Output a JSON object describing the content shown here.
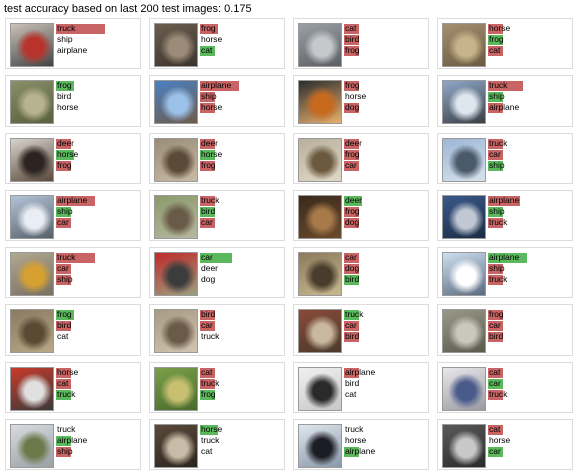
{
  "header": {
    "title": "test accuracy based on last 200 test images: 0.175"
  },
  "colors": {
    "incorrect_bar": "#c86464",
    "correct_bar": "#5cb85c"
  },
  "cards": [
    {
      "image_hint": "car",
      "thumb_colors": [
        "#c9c2b8",
        "#b7332b",
        "#444444"
      ],
      "preds": [
        {
          "label": "truck",
          "score": 0.7,
          "correct": false
        },
        {
          "label": "ship",
          "score": 0,
          "correct": false
        },
        {
          "label": "airplane",
          "score": 0,
          "correct": false
        }
      ]
    },
    {
      "image_hint": "cat",
      "thumb_colors": [
        "#6b5e50",
        "#9b8b78",
        "#3c342c"
      ],
      "preds": [
        {
          "label": "frog",
          "score": 0.25,
          "correct": false
        },
        {
          "label": "horse",
          "score": 0,
          "correct": false
        },
        {
          "label": "cat",
          "score": 0.22,
          "correct": true
        }
      ]
    },
    {
      "image_hint": "car",
      "thumb_colors": [
        "#9aa0a6",
        "#c6c9cc",
        "#5b5f63"
      ],
      "preds": [
        {
          "label": "cat",
          "score": 0.22,
          "correct": false
        },
        {
          "label": "bird",
          "score": 0.22,
          "correct": false
        },
        {
          "label": "frog",
          "score": 0.22,
          "correct": false
        }
      ]
    },
    {
      "image_hint": "frog",
      "thumb_colors": [
        "#a59070",
        "#c8b48c",
        "#6a5a40"
      ],
      "preds": [
        {
          "label": "horse",
          "score": 0.22,
          "correct": false
        },
        {
          "label": "frog",
          "score": 0.22,
          "correct": true
        },
        {
          "label": "cat",
          "score": 0.22,
          "correct": false
        }
      ]
    },
    {
      "image_hint": "frog",
      "thumb_colors": [
        "#8a8f6a",
        "#b7b390",
        "#5a5f3c"
      ],
      "preds": [
        {
          "label": "frog",
          "score": 0.25,
          "correct": true
        },
        {
          "label": "bird",
          "score": 0,
          "correct": false
        },
        {
          "label": "horse",
          "score": 0,
          "correct": false
        }
      ]
    },
    {
      "image_hint": "frog",
      "thumb_colors": [
        "#4a80c4",
        "#9cc1e8",
        "#6f5c4a"
      ],
      "preds": [
        {
          "label": "airplane",
          "score": 0.55,
          "correct": false
        },
        {
          "label": "ship",
          "score": 0.22,
          "correct": false
        },
        {
          "label": "horse",
          "score": 0.22,
          "correct": false
        }
      ]
    },
    {
      "image_hint": "bird",
      "thumb_colors": [
        "#2d2d2d",
        "#c86a1e",
        "#e6b070"
      ],
      "preds": [
        {
          "label": "frog",
          "score": 0.22,
          "correct": false
        },
        {
          "label": "horse",
          "score": 0,
          "correct": false
        },
        {
          "label": "dog",
          "score": 0.22,
          "correct": false
        }
      ]
    },
    {
      "image_hint": "ship",
      "thumb_colors": [
        "#8fa8c8",
        "#dfe6ee",
        "#3a3f44"
      ],
      "preds": [
        {
          "label": "truck",
          "score": 0.5,
          "correct": false
        },
        {
          "label": "ship",
          "score": 0.22,
          "correct": true
        },
        {
          "label": "airplane",
          "score": 0.22,
          "correct": false
        }
      ]
    },
    {
      "image_hint": "horse",
      "thumb_colors": [
        "#d7d3cc",
        "#2b2420",
        "#5b4a3c"
      ],
      "preds": [
        {
          "label": "deer",
          "score": 0.22,
          "correct": false
        },
        {
          "label": "horse",
          "score": 0.25,
          "correct": true
        },
        {
          "label": "frog",
          "score": 0.22,
          "correct": false
        }
      ]
    },
    {
      "image_hint": "horse",
      "thumb_colors": [
        "#9a8d78",
        "#5c4a38",
        "#c7bba4"
      ],
      "preds": [
        {
          "label": "deer",
          "score": 0.22,
          "correct": false
        },
        {
          "label": "horse",
          "score": 0.22,
          "correct": true
        },
        {
          "label": "frog",
          "score": 0.22,
          "correct": false
        }
      ]
    },
    {
      "image_hint": "bird",
      "thumb_colors": [
        "#b8b09c",
        "#6c5a40",
        "#e0d8c6"
      ],
      "preds": [
        {
          "label": "deer",
          "score": 0.22,
          "correct": false
        },
        {
          "label": "frog",
          "score": 0.22,
          "correct": false
        },
        {
          "label": "car",
          "score": 0.22,
          "correct": false
        }
      ]
    },
    {
      "image_hint": "ship",
      "thumb_colors": [
        "#9db7d6",
        "#4b5a6a",
        "#d8e2ec"
      ],
      "preds": [
        {
          "label": "truck",
          "score": 0.22,
          "correct": false
        },
        {
          "label": "car",
          "score": 0.22,
          "correct": false
        },
        {
          "label": "ship",
          "score": 0.22,
          "correct": true
        }
      ]
    },
    {
      "image_hint": "ship",
      "thumb_colors": [
        "#b4c4d8",
        "#e9eef4",
        "#56606a"
      ],
      "preds": [
        {
          "label": "airplane",
          "score": 0.55,
          "correct": false
        },
        {
          "label": "ship",
          "score": 0.22,
          "correct": true
        },
        {
          "label": "car",
          "score": 0.22,
          "correct": false
        }
      ]
    },
    {
      "image_hint": "bird",
      "thumb_colors": [
        "#8a9a6a",
        "#6a5a48",
        "#b8b8a0"
      ],
      "preds": [
        {
          "label": "truck",
          "score": 0.22,
          "correct": false
        },
        {
          "label": "bird",
          "score": 0.22,
          "correct": true
        },
        {
          "label": "car",
          "score": 0.22,
          "correct": false
        }
      ]
    },
    {
      "image_hint": "deer",
      "thumb_colors": [
        "#3a2a1c",
        "#a87a4a",
        "#6a4a2c"
      ],
      "preds": [
        {
          "label": "deer",
          "score": 0.25,
          "correct": true
        },
        {
          "label": "frog",
          "score": 0.22,
          "correct": false
        },
        {
          "label": "dog",
          "score": 0.22,
          "correct": false
        }
      ]
    },
    {
      "image_hint": "ship",
      "thumb_colors": [
        "#3a5a8a",
        "#c0c8d4",
        "#1c2c44"
      ],
      "preds": [
        {
          "label": "airplane",
          "score": 0.45,
          "correct": false
        },
        {
          "label": "ship",
          "score": 0.22,
          "correct": true
        },
        {
          "label": "truck",
          "score": 0.22,
          "correct": false
        }
      ]
    },
    {
      "image_hint": "bird",
      "thumb_colors": [
        "#b0a890",
        "#d8a030",
        "#7a7060"
      ],
      "preds": [
        {
          "label": "truck",
          "score": 0.55,
          "correct": false
        },
        {
          "label": "car",
          "score": 0.22,
          "correct": false
        },
        {
          "label": "ship",
          "score": 0.22,
          "correct": false
        }
      ]
    },
    {
      "image_hint": "car",
      "thumb_colors": [
        "#c02a2a",
        "#3c3c3c",
        "#9aa080"
      ],
      "preds": [
        {
          "label": "car",
          "score": 0.45,
          "correct": true
        },
        {
          "label": "deer",
          "score": 0,
          "correct": false
        },
        {
          "label": "dog",
          "score": 0,
          "correct": false
        }
      ]
    },
    {
      "image_hint": "bird",
      "thumb_colors": [
        "#8a7a5a",
        "#4a3c2c",
        "#c8b890"
      ],
      "preds": [
        {
          "label": "car",
          "score": 0.22,
          "correct": false
        },
        {
          "label": "dog",
          "score": 0.22,
          "correct": false
        },
        {
          "label": "bird",
          "score": 0.22,
          "correct": true
        }
      ]
    },
    {
      "image_hint": "airplane",
      "thumb_colors": [
        "#cfe0f0",
        "#ffffff",
        "#5a6a80"
      ],
      "preds": [
        {
          "label": "airplane",
          "score": 0.55,
          "correct": true
        },
        {
          "label": "ship",
          "score": 0.22,
          "correct": false
        },
        {
          "label": "truck",
          "score": 0.22,
          "correct": false
        }
      ]
    },
    {
      "image_hint": "frog",
      "thumb_colors": [
        "#8a7a60",
        "#5a4a34",
        "#b8a888"
      ],
      "preds": [
        {
          "label": "frog",
          "score": 0.25,
          "correct": true
        },
        {
          "label": "bird",
          "score": 0.22,
          "correct": false
        },
        {
          "label": "cat",
          "score": 0,
          "correct": false
        }
      ]
    },
    {
      "image_hint": "cat",
      "thumb_colors": [
        "#a89a84",
        "#6a5a48",
        "#d0c4b0"
      ],
      "preds": [
        {
          "label": "bird",
          "score": 0.22,
          "correct": false
        },
        {
          "label": "car",
          "score": 0.22,
          "correct": false
        },
        {
          "label": "truck",
          "score": 0,
          "correct": false
        }
      ]
    },
    {
      "image_hint": "truck",
      "thumb_colors": [
        "#8a4a3a",
        "#c8b8a0",
        "#4a3a2c"
      ],
      "preds": [
        {
          "label": "truck",
          "score": 0.22,
          "correct": true
        },
        {
          "label": "car",
          "score": 0.22,
          "correct": false
        },
        {
          "label": "bird",
          "score": 0.22,
          "correct": false
        }
      ]
    },
    {
      "image_hint": "horse",
      "thumb_colors": [
        "#9a9a8a",
        "#c8c8bc",
        "#5a5a4c"
      ],
      "preds": [
        {
          "label": "frog",
          "score": 0.22,
          "correct": false
        },
        {
          "label": "car",
          "score": 0.22,
          "correct": false
        },
        {
          "label": "bird",
          "score": 0.22,
          "correct": false
        }
      ]
    },
    {
      "image_hint": "truck",
      "thumb_colors": [
        "#c83a2a",
        "#e0e0e0",
        "#3a3a3a"
      ],
      "preds": [
        {
          "label": "horse",
          "score": 0.22,
          "correct": false
        },
        {
          "label": "cat",
          "score": 0.22,
          "correct": false
        },
        {
          "label": "truck",
          "score": 0.22,
          "correct": true
        }
      ]
    },
    {
      "image_hint": "frog",
      "thumb_colors": [
        "#7aa04a",
        "#c8c070",
        "#4a6a2c"
      ],
      "preds": [
        {
          "label": "cat",
          "score": 0.22,
          "correct": false
        },
        {
          "label": "truck",
          "score": 0.22,
          "correct": false
        },
        {
          "label": "frog",
          "score": 0.22,
          "correct": true
        }
      ]
    },
    {
      "image_hint": "dog",
      "thumb_colors": [
        "#f0f0f0",
        "#2a2a2a",
        "#c8c8c8"
      ],
      "preds": [
        {
          "label": "airplane",
          "score": 0.22,
          "correct": false
        },
        {
          "label": "bird",
          "score": 0,
          "correct": false
        },
        {
          "label": "cat",
          "score": 0,
          "correct": false
        }
      ]
    },
    {
      "image_hint": "car",
      "thumb_colors": [
        "#e8e8ec",
        "#4a5a8a",
        "#9a9aa0"
      ],
      "preds": [
        {
          "label": "cat",
          "score": 0.22,
          "correct": false
        },
        {
          "label": "car",
          "score": 0.22,
          "correct": true
        },
        {
          "label": "truck",
          "score": 0.22,
          "correct": false
        }
      ]
    },
    {
      "image_hint": "airplane",
      "thumb_colors": [
        "#d8dce0",
        "#6a7a4a",
        "#9aa0a4"
      ],
      "preds": [
        {
          "label": "truck",
          "score": 0,
          "correct": false
        },
        {
          "label": "airplane",
          "score": 0.22,
          "correct": true
        },
        {
          "label": "ship",
          "score": 0.22,
          "correct": false
        }
      ]
    },
    {
      "image_hint": "horse",
      "thumb_colors": [
        "#5a4a3c",
        "#c8bca8",
        "#2c241c"
      ],
      "preds": [
        {
          "label": "horse",
          "score": 0.25,
          "correct": true
        },
        {
          "label": "truck",
          "score": 0,
          "correct": false
        },
        {
          "label": "cat",
          "score": 0,
          "correct": false
        }
      ]
    },
    {
      "image_hint": "airplane",
      "thumb_colors": [
        "#dfe6ee",
        "#1c1c24",
        "#8a98a8"
      ],
      "preds": [
        {
          "label": "truck",
          "score": 0,
          "correct": false
        },
        {
          "label": "horse",
          "score": 0,
          "correct": false
        },
        {
          "label": "airplane",
          "score": 0.22,
          "correct": true
        }
      ]
    },
    {
      "image_hint": "car",
      "thumb_colors": [
        "#5a5a5a",
        "#c8c8c8",
        "#2a2a2a"
      ],
      "preds": [
        {
          "label": "cat",
          "score": 0.22,
          "correct": false
        },
        {
          "label": "horse",
          "score": 0,
          "correct": false
        },
        {
          "label": "car",
          "score": 0.22,
          "correct": true
        }
      ]
    }
  ]
}
